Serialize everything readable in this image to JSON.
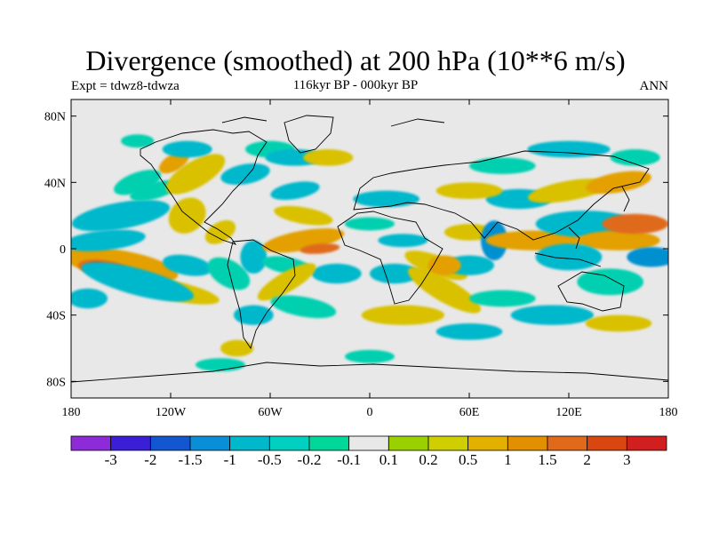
{
  "title": "Divergence (smoothed) at 200 hPa (10**6 m/s)",
  "left_subtitle": "Expt = tdwz8-tdwza",
  "center_subtitle": "116kyr BP - 000kyr BP",
  "right_subtitle": "ANN",
  "map": {
    "projection": "cylindrical-equidistant",
    "lon_range": [
      -180,
      180
    ],
    "lat_range": [
      -90,
      90
    ],
    "background_color": "#e8e8e8",
    "x_ticks": [
      {
        "lon": -180,
        "label": "180"
      },
      {
        "lon": -120,
        "label": "120W"
      },
      {
        "lon": -60,
        "label": "60W"
      },
      {
        "lon": 0,
        "label": "0"
      },
      {
        "lon": 60,
        "label": "60E"
      },
      {
        "lon": 120,
        "label": "120E"
      },
      {
        "lon": 180,
        "label": "180"
      }
    ],
    "y_ticks": [
      {
        "lat": 80,
        "label": "80N"
      },
      {
        "lat": 40,
        "label": "40N"
      },
      {
        "lat": 0,
        "label": "0"
      },
      {
        "lat": -40,
        "label": "40S"
      },
      {
        "lat": -80,
        "label": "80S"
      }
    ],
    "field_blobs": [
      {
        "lon": -150,
        "lat": -10,
        "rlon": 35,
        "rlat": 9,
        "color": "#e3a000",
        "rot": 10
      },
      {
        "lon": -160,
        "lat": -12,
        "rlon": 16,
        "rlat": 5,
        "color": "#e06a1a",
        "rot": 8
      },
      {
        "lon": -165,
        "lat": -11,
        "rlon": 6,
        "rlat": 3,
        "color": "#d13a1a",
        "rot": 0
      },
      {
        "lon": -120,
        "lat": -25,
        "rlon": 30,
        "rlat": 6,
        "color": "#d9c100",
        "rot": 12
      },
      {
        "lon": -140,
        "lat": -22,
        "rlon": 14,
        "rlat": 4,
        "color": "#e06a1a",
        "rot": 10
      },
      {
        "lon": -160,
        "lat": 5,
        "rlon": 25,
        "rlat": 6,
        "color": "#00b8cc",
        "rot": -6
      },
      {
        "lon": -150,
        "lat": 20,
        "rlon": 30,
        "rlat": 8,
        "color": "#00b8cc",
        "rot": -10
      },
      {
        "lon": -130,
        "lat": 35,
        "rlon": 15,
        "rlat": 5,
        "color": "#00d0b0",
        "rot": -15
      },
      {
        "lon": -140,
        "lat": -20,
        "rlon": 35,
        "rlat": 8,
        "color": "#00b8cc",
        "rot": 15
      },
      {
        "lon": -170,
        "lat": -30,
        "rlon": 12,
        "rlat": 6,
        "color": "#00b8cc",
        "rot": 0
      },
      {
        "lon": -110,
        "lat": 20,
        "rlon": 12,
        "rlat": 10,
        "color": "#d9c100",
        "rot": -40
      },
      {
        "lon": -105,
        "lat": 45,
        "rlon": 20,
        "rlat": 8,
        "color": "#d9c100",
        "rot": -30
      },
      {
        "lon": -118,
        "lat": 52,
        "rlon": 10,
        "rlat": 5,
        "color": "#e3a000",
        "rot": -30
      },
      {
        "lon": -140,
        "lat": 40,
        "rlon": 15,
        "rlat": 6,
        "color": "#00d0b0",
        "rot": -20
      },
      {
        "lon": -75,
        "lat": 45,
        "rlon": 15,
        "rlat": 6,
        "color": "#00b8cc",
        "rot": -10
      },
      {
        "lon": -60,
        "lat": 60,
        "rlon": 15,
        "rlat": 5,
        "color": "#00d0b0",
        "rot": 0
      },
      {
        "lon": -110,
        "lat": 60,
        "rlon": 15,
        "rlat": 5,
        "color": "#00b8cc",
        "rot": 0
      },
      {
        "lon": -140,
        "lat": 65,
        "rlon": 10,
        "rlat": 4,
        "color": "#00d0b0",
        "rot": 0
      },
      {
        "lon": -110,
        "lat": -10,
        "rlon": 15,
        "rlat": 6,
        "color": "#00b8cc",
        "rot": 10
      },
      {
        "lon": -90,
        "lat": 10,
        "rlon": 10,
        "rlat": 6,
        "color": "#d9c100",
        "rot": -30
      },
      {
        "lon": -85,
        "lat": -15,
        "rlon": 14,
        "rlat": 8,
        "color": "#00d0b0",
        "rot": 30
      },
      {
        "lon": -70,
        "lat": -5,
        "rlon": 8,
        "rlat": 10,
        "color": "#00b8cc",
        "rot": 0
      },
      {
        "lon": -40,
        "lat": 5,
        "rlon": 25,
        "rlat": 6,
        "color": "#e3a000",
        "rot": -10
      },
      {
        "lon": -30,
        "lat": 0,
        "rlon": 12,
        "rlat": 3,
        "color": "#e06a1a",
        "rot": -5
      },
      {
        "lon": -50,
        "lat": -10,
        "rlon": 15,
        "rlat": 5,
        "color": "#00d0b0",
        "rot": 10
      },
      {
        "lon": -40,
        "lat": 20,
        "rlon": 18,
        "rlat": 5,
        "color": "#d9c100",
        "rot": 10
      },
      {
        "lon": -45,
        "lat": 35,
        "rlon": 15,
        "rlat": 5,
        "color": "#00b8cc",
        "rot": -10
      },
      {
        "lon": -20,
        "lat": -15,
        "rlon": 15,
        "rlat": 6,
        "color": "#00b8cc",
        "rot": 0
      },
      {
        "lon": -50,
        "lat": -20,
        "rlon": 20,
        "rlat": 6,
        "color": "#d9c100",
        "rot": -30
      },
      {
        "lon": -40,
        "lat": -35,
        "rlon": 20,
        "rlat": 6,
        "color": "#00d0b0",
        "rot": 10
      },
      {
        "lon": -45,
        "lat": 55,
        "rlon": 18,
        "rlat": 5,
        "color": "#00b8cc",
        "rot": 0
      },
      {
        "lon": -25,
        "lat": 55,
        "rlon": 15,
        "rlat": 5,
        "color": "#d9c100",
        "rot": 0
      },
      {
        "lon": -80,
        "lat": -60,
        "rlon": 10,
        "rlat": 5,
        "color": "#d9c100",
        "rot": 0
      },
      {
        "lon": -70,
        "lat": -40,
        "rlon": 12,
        "rlat": 6,
        "color": "#00b8cc",
        "rot": 0
      },
      {
        "lon": 10,
        "lat": 30,
        "rlon": 20,
        "rlat": 5,
        "color": "#00b8cc",
        "rot": 0
      },
      {
        "lon": 0,
        "lat": 15,
        "rlon": 15,
        "rlat": 4,
        "color": "#00d0b0",
        "rot": 0
      },
      {
        "lon": 20,
        "lat": 5,
        "rlon": 15,
        "rlat": 4,
        "color": "#00b8cc",
        "rot": 0
      },
      {
        "lon": 15,
        "lat": -15,
        "rlon": 15,
        "rlat": 6,
        "color": "#00b8cc",
        "rot": 0
      },
      {
        "lon": 40,
        "lat": -10,
        "rlon": 20,
        "rlat": 6,
        "color": "#d9c100",
        "rot": 20
      },
      {
        "lon": 45,
        "lat": -25,
        "rlon": 25,
        "rlat": 7,
        "color": "#d9c100",
        "rot": 30
      },
      {
        "lon": 60,
        "lat": -10,
        "rlon": 15,
        "rlat": 6,
        "color": "#00b8cc",
        "rot": 0
      },
      {
        "lon": 45,
        "lat": -10,
        "rlon": 10,
        "rlat": 6,
        "color": "#e3a000",
        "rot": 0
      },
      {
        "lon": 60,
        "lat": 10,
        "rlon": 15,
        "rlat": 5,
        "color": "#d9c100",
        "rot": 0
      },
      {
        "lon": 75,
        "lat": 5,
        "rlon": 8,
        "rlat": 12,
        "color": "#0090d0",
        "rot": 0
      },
      {
        "lon": 100,
        "lat": 5,
        "rlon": 30,
        "rlat": 6,
        "color": "#e3a000",
        "rot": 0
      },
      {
        "lon": 130,
        "lat": 15,
        "rlon": 30,
        "rlat": 8,
        "color": "#00b8cc",
        "rot": 0
      },
      {
        "lon": 150,
        "lat": 5,
        "rlon": 25,
        "rlat": 6,
        "color": "#e3a000",
        "rot": 0
      },
      {
        "lon": 160,
        "lat": 15,
        "rlon": 20,
        "rlat": 6,
        "color": "#e06a1a",
        "rot": 0
      },
      {
        "lon": 120,
        "lat": -5,
        "rlon": 20,
        "rlat": 8,
        "color": "#00b8cc",
        "rot": 0
      },
      {
        "lon": 145,
        "lat": -20,
        "rlon": 20,
        "rlat": 8,
        "color": "#00d0b0",
        "rot": 0
      },
      {
        "lon": 170,
        "lat": -5,
        "rlon": 15,
        "rlat": 6,
        "color": "#0090d0",
        "rot": 0
      },
      {
        "lon": 90,
        "lat": 30,
        "rlon": 20,
        "rlat": 6,
        "color": "#00b8cc",
        "rot": 0
      },
      {
        "lon": 120,
        "lat": 35,
        "rlon": 25,
        "rlat": 6,
        "color": "#d9c100",
        "rot": -10
      },
      {
        "lon": 150,
        "lat": 40,
        "rlon": 20,
        "rlat": 6,
        "color": "#e3a000",
        "rot": -10
      },
      {
        "lon": 60,
        "lat": 35,
        "rlon": 20,
        "rlat": 5,
        "color": "#d9c100",
        "rot": 0
      },
      {
        "lon": 80,
        "lat": 50,
        "rlon": 20,
        "rlat": 5,
        "color": "#00d0b0",
        "rot": 0
      },
      {
        "lon": 120,
        "lat": 60,
        "rlon": 25,
        "rlat": 5,
        "color": "#00b8cc",
        "rot": 0
      },
      {
        "lon": 160,
        "lat": 55,
        "rlon": 15,
        "rlat": 5,
        "color": "#00d0b0",
        "rot": 0
      },
      {
        "lon": 80,
        "lat": -30,
        "rlon": 20,
        "rlat": 5,
        "color": "#00d0b0",
        "rot": 0
      },
      {
        "lon": 110,
        "lat": -40,
        "rlon": 25,
        "rlat": 6,
        "color": "#00b8cc",
        "rot": 0
      },
      {
        "lon": 150,
        "lat": -45,
        "rlon": 20,
        "rlat": 5,
        "color": "#d9c100",
        "rot": 0
      },
      {
        "lon": 20,
        "lat": -40,
        "rlon": 25,
        "rlat": 6,
        "color": "#d9c100",
        "rot": 0
      },
      {
        "lon": 60,
        "lat": -50,
        "rlon": 20,
        "rlat": 5,
        "color": "#00b8cc",
        "rot": 0
      },
      {
        "lon": 0,
        "lat": -65,
        "rlon": 15,
        "rlat": 4,
        "color": "#00d0b0",
        "rot": 0
      },
      {
        "lon": -90,
        "lat": -70,
        "rlon": 15,
        "rlat": 4,
        "color": "#00d0b0",
        "rot": 0
      }
    ]
  },
  "colorbar": {
    "colors": [
      "#8e2bd9",
      "#3a1fd6",
      "#1257d0",
      "#0a8ed8",
      "#00b8cc",
      "#00d0c0",
      "#00d89a",
      "#e8e8e8",
      "#9ad000",
      "#cfcf00",
      "#e3b000",
      "#e39000",
      "#e06a1a",
      "#d9460f",
      "#d11f1f"
    ],
    "labels": [
      "-3",
      "-2",
      "-1.5",
      "-1",
      "-0.5",
      "-0.2",
      "-0.1",
      "0.1",
      "0.2",
      "0.5",
      "1",
      "1.5",
      "2",
      "3"
    ]
  }
}
